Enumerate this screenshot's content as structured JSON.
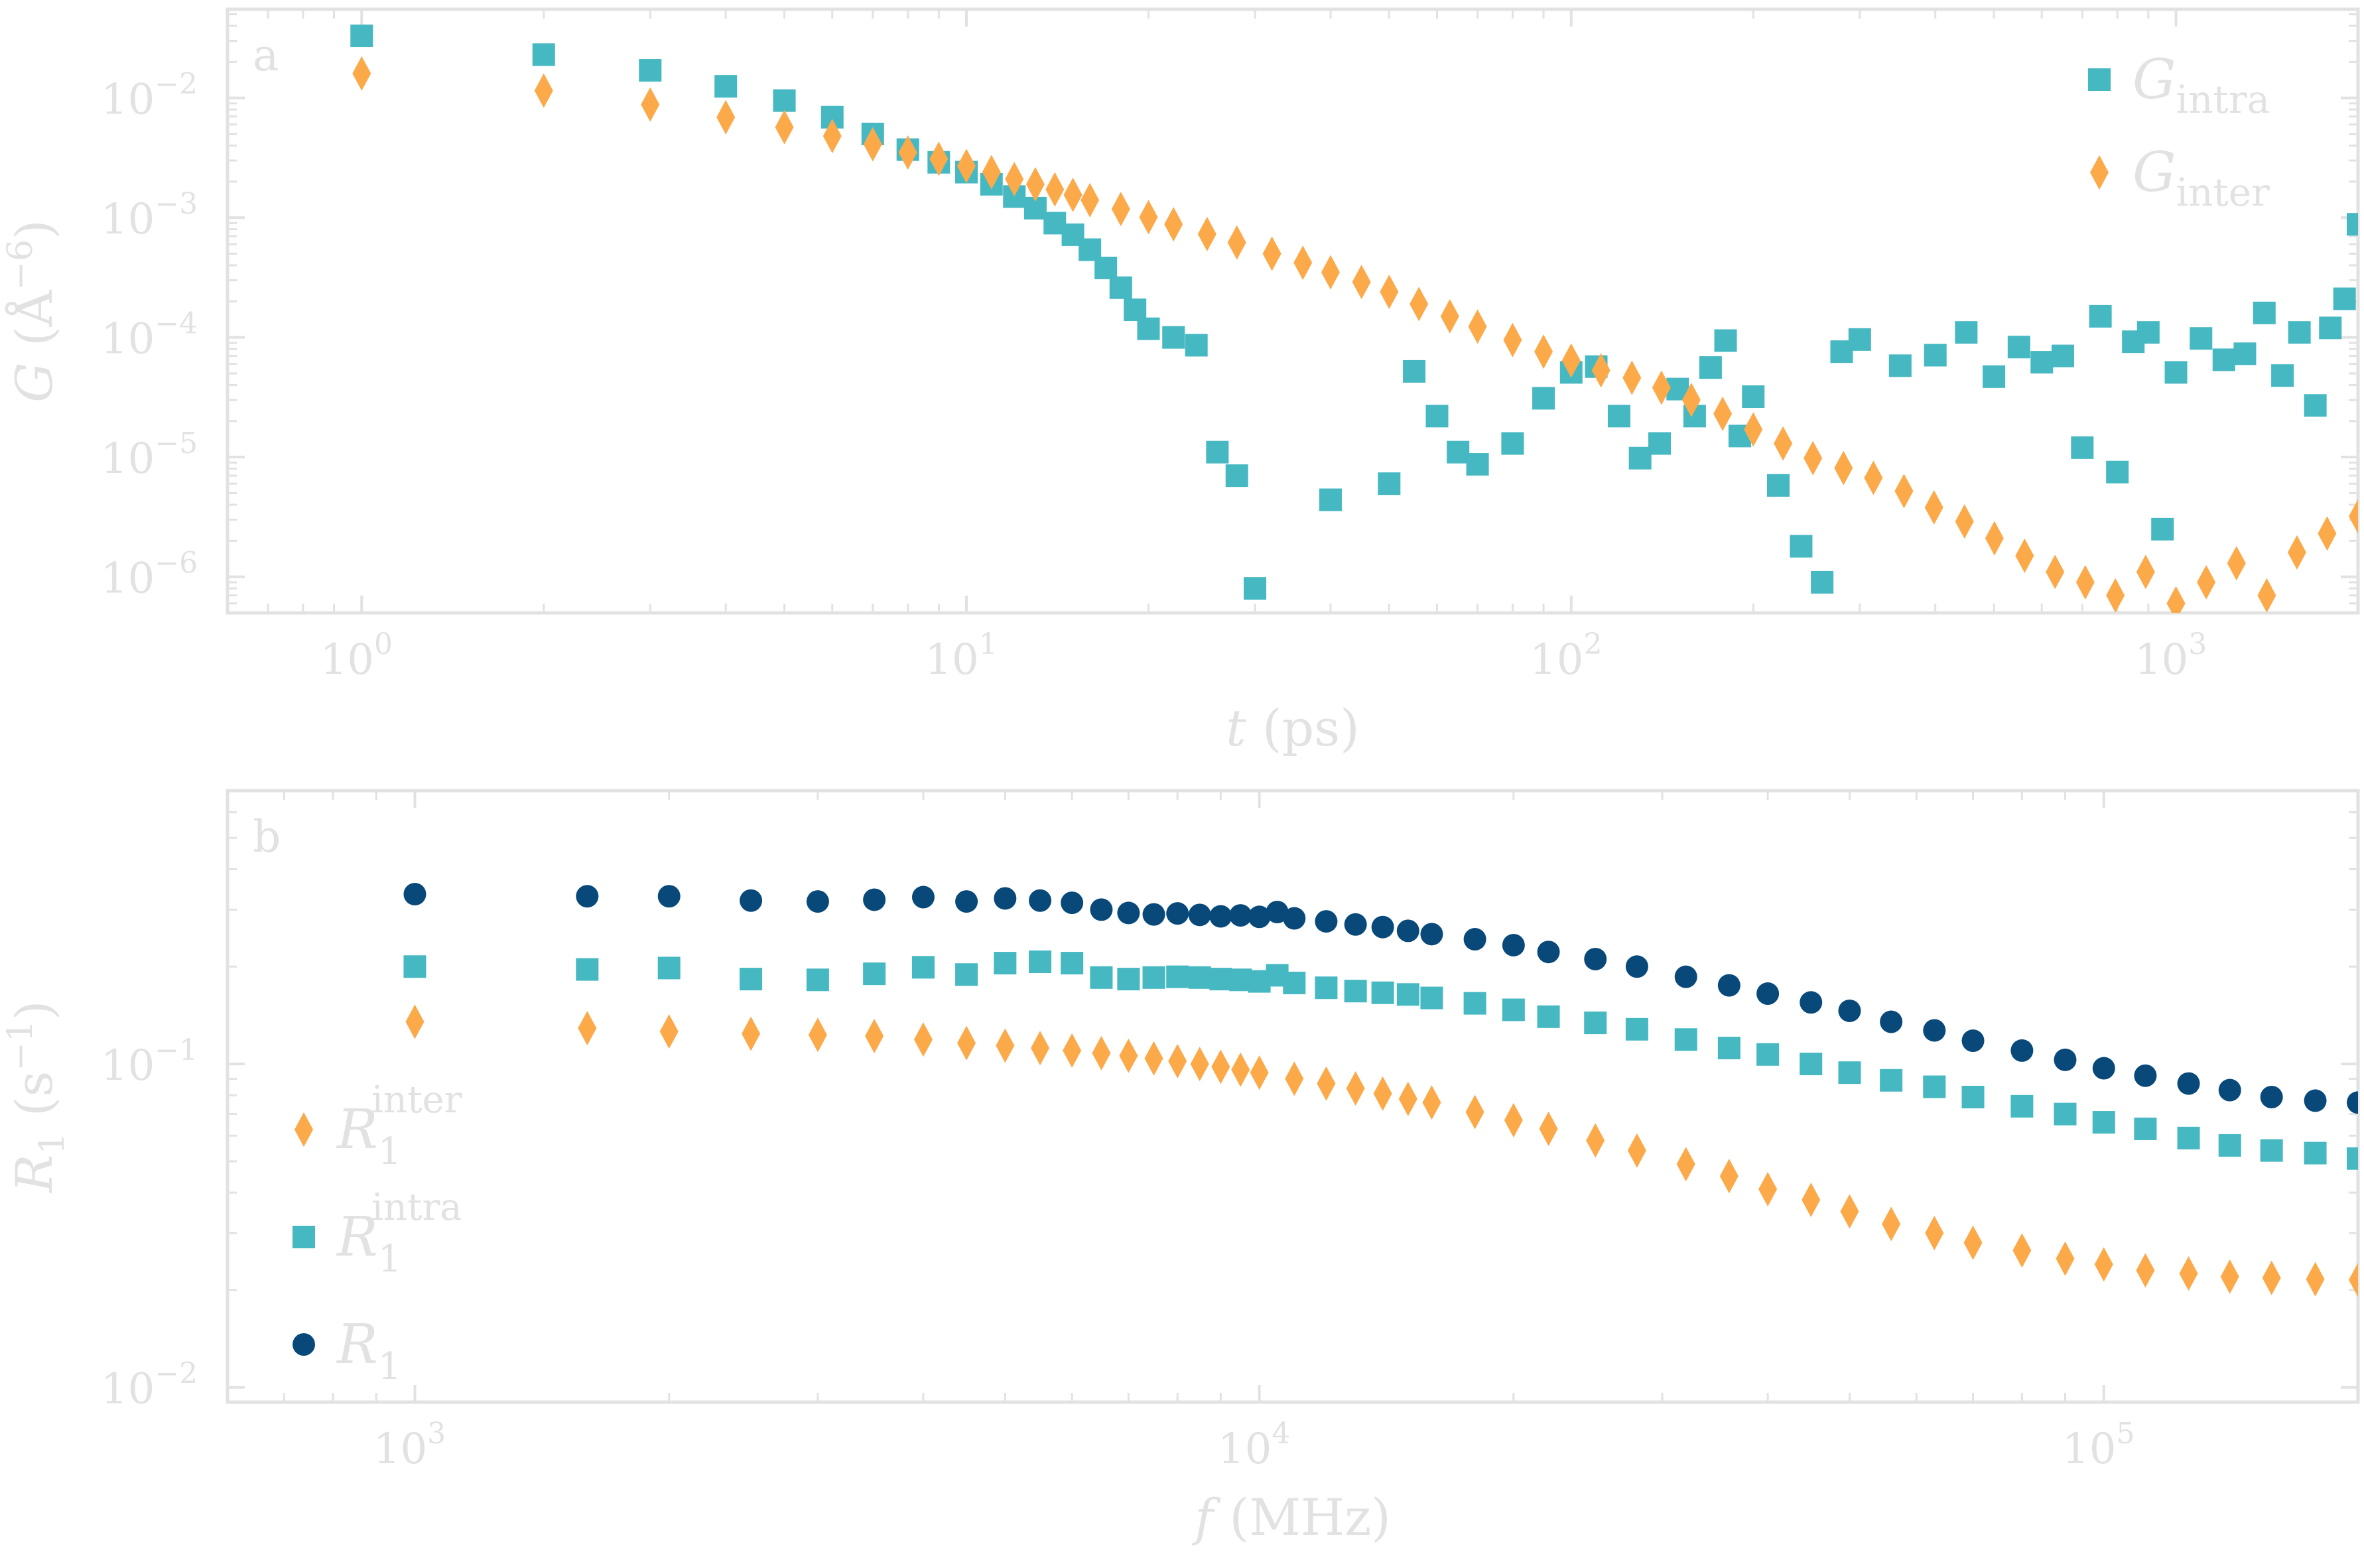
{
  "colors": {
    "intra": "#45b8c2",
    "inter": "#fca94a",
    "total": "#08497a",
    "axes": "#e2e2e2"
  },
  "chart_data": [
    {
      "panel_label": "a",
      "type": "scatter",
      "x_scale": "log",
      "y_scale": "log",
      "xlabel_symbol": "t",
      "xlabel_unit": " (ps)",
      "ylabel_symbol": "G",
      "ylabel_unit_open": " (Å",
      "ylabel_unit_exp": "−6",
      "ylabel_unit_close": ")",
      "xlim": [
        0.6,
        2000
      ],
      "ylim": [
        5e-07,
        0.055
      ],
      "x_tick_values": [
        1,
        10,
        100,
        1000
      ],
      "x_tick_exponents": [
        "0",
        "1",
        "2",
        "3"
      ],
      "y_tick_values": [
        0.01,
        0.001,
        0.0001,
        1e-05,
        1e-06
      ],
      "y_tick_exponents": [
        "−2",
        "−3",
        "−4",
        "−5",
        "−6"
      ],
      "tick_base": "10",
      "grid": false,
      "legend_position": "top-right",
      "series": [
        {
          "key": "intra",
          "name_symbol": "G",
          "name_sub": "intra",
          "marker": "square",
          "color": "#45b8c2",
          "x": [
            1,
            2,
            3,
            4,
            5,
            6,
            7,
            8,
            9,
            10,
            11,
            12,
            13,
            14,
            15,
            16,
            17,
            18,
            19,
            20,
            22,
            24,
            26,
            28,
            30,
            40,
            50,
            55,
            60,
            65,
            70,
            80,
            90,
            100,
            110,
            120,
            130,
            140,
            150,
            160,
            170,
            180,
            190,
            200,
            220,
            240,
            260,
            280,
            300,
            350,
            400,
            450,
            500,
            550,
            600,
            650,
            700,
            750,
            800,
            850,
            900,
            950,
            1000,
            1100,
            1200,
            1300,
            1400,
            1500,
            1600,
            1700,
            1800,
            1900,
            2000
          ],
          "y": [
            0.033,
            0.023,
            0.017,
            0.0125,
            0.0095,
            0.0069,
            0.005,
            0.0037,
            0.0029,
            0.0024,
            0.0019,
            0.0015,
            0.0012,
            0.0009,
            0.00072,
            0.00054,
            0.00038,
            0.00026,
            0.00017,
            0.000118,
            0.0001,
            8.6e-05,
            1.1e-05,
            7e-06,
            8e-07,
            4.4e-06,
            6e-06,
            5.2e-05,
            2.2e-05,
            1.1e-05,
            8.7e-06,
            1.3e-05,
            3.1e-05,
            5.1e-05,
            5.7e-05,
            2.2e-05,
            9.8e-06,
            1.3e-05,
            3.7e-05,
            2.2e-05,
            5.6e-05,
            9.4e-05,
            1.5e-05,
            3.2e-05,
            5.8e-06,
            1.8e-06,
            9e-07,
            7.6e-05,
            9.6e-05,
            5.8e-05,
            7.1e-05,
            0.00011,
            4.7e-05,
            8.3e-05,
            6.2e-05,
            7e-05,
            1.2e-05,
            0.00015,
            7.5e-06,
            9.2e-05,
            0.00011,
            2.5e-06,
            5.1e-05,
            9.8e-05,
            6.5e-05,
            7.3e-05,
            0.00016,
            4.8e-05,
            0.00011,
            2.7e-05,
            0.00012,
            0.00021,
            0.00088
          ]
        },
        {
          "key": "inter",
          "name_symbol": "G",
          "name_sub": "inter",
          "marker": "diamond",
          "color": "#fca94a",
          "x": [
            1,
            2,
            3,
            4,
            5,
            6,
            7,
            8,
            9,
            10,
            11,
            12,
            13,
            14,
            15,
            16,
            18,
            20,
            22,
            25,
            28,
            32,
            36,
            40,
            45,
            50,
            56,
            63,
            70,
            80,
            90,
            100,
            112,
            126,
            141,
            158,
            178,
            200,
            224,
            251,
            282,
            316,
            355,
            398,
            447,
            501,
            562,
            631,
            708,
            794,
            891,
            1000,
            1122,
            1259,
            1413,
            1585,
            1778,
            2000
          ],
          "y": [
            0.016,
            0.0115,
            0.0088,
            0.0069,
            0.0057,
            0.0048,
            0.0041,
            0.0035,
            0.0031,
            0.0027,
            0.0024,
            0.0021,
            0.0019,
            0.00172,
            0.00155,
            0.0014,
            0.00118,
            0.00101,
            0.00088,
            0.00073,
            0.00062,
            0.0005,
            0.00042,
            0.00035,
            0.00029,
            0.00024,
            0.00019,
            0.00015,
            0.000123,
            9.5e-05,
            7.6e-05,
            6.4e-05,
            5.3e-05,
            4.6e-05,
            3.8e-05,
            3e-05,
            2.3e-05,
            1.7e-05,
            1.3e-05,
            9.8e-06,
            8.1e-06,
            6.7e-06,
            5.2e-06,
            3.8e-06,
            2.9e-06,
            2.1e-06,
            1.5e-06,
            1.1e-06,
            9e-07,
            7e-07,
            1.1e-06,
            6e-07,
            9e-07,
            1.3e-06,
            7e-07,
            1.6e-06,
            2.3e-06,
            3.2e-06
          ]
        }
      ]
    },
    {
      "panel_label": "b",
      "type": "scatter",
      "x_scale": "log",
      "y_scale": "log",
      "xlabel_symbol": "f",
      "xlabel_unit": " (MHz)",
      "ylabel_symbol": "R",
      "ylabel_sub": "1",
      "ylabel_unit_open": " (s",
      "ylabel_unit_exp": "−1",
      "ylabel_unit_close": ")",
      "xlim": [
        600,
        200000
      ],
      "ylim": [
        0.009,
        0.7
      ],
      "x_tick_values": [
        1000,
        10000,
        100000
      ],
      "x_tick_exponents": [
        "3",
        "4",
        "5"
      ],
      "y_tick_values": [
        0.1,
        0.01
      ],
      "y_tick_exponents": [
        "−1",
        "−2"
      ],
      "tick_base": "10",
      "grid": false,
      "legend_position": "bottom-left",
      "series": [
        {
          "key": "inter",
          "name_symbol": "R",
          "name_sub": "1",
          "name_sup": "inter",
          "marker": "diamond",
          "color": "#fca94a",
          "x": [
            1000,
            1600,
            2000,
            2500,
            3000,
            3500,
            4000,
            4500,
            5000,
            5500,
            6000,
            6500,
            7000,
            7500,
            8000,
            8500,
            9000,
            9500,
            10000,
            11000,
            12000,
            13000,
            14000,
            15000,
            16000,
            18000,
            20000,
            22000,
            25000,
            28000,
            32000,
            36000,
            40000,
            45000,
            50000,
            56000,
            63000,
            70000,
            80000,
            90000,
            100000,
            112000,
            126000,
            141000,
            158000,
            178000,
            200000
          ],
          "y": [
            0.135,
            0.129,
            0.126,
            0.124,
            0.123,
            0.122,
            0.119,
            0.116,
            0.114,
            0.112,
            0.11,
            0.108,
            0.106,
            0.104,
            0.102,
            0.1,
            0.098,
            0.096,
            0.094,
            0.09,
            0.087,
            0.084,
            0.081,
            0.078,
            0.076,
            0.071,
            0.067,
            0.063,
            0.058,
            0.054,
            0.049,
            0.045,
            0.041,
            0.038,
            0.035,
            0.032,
            0.03,
            0.028,
            0.0265,
            0.025,
            0.024,
            0.023,
            0.0225,
            0.022,
            0.0218,
            0.0216,
            0.0215
          ]
        },
        {
          "key": "intra",
          "name_symbol": "R",
          "name_sub": "1",
          "name_sup": "intra",
          "marker": "square",
          "color": "#45b8c2",
          "x": [
            1000,
            1600,
            2000,
            2500,
            3000,
            3500,
            4000,
            4500,
            5000,
            5500,
            6000,
            6500,
            7000,
            7500,
            8000,
            8500,
            9000,
            9500,
            10000,
            10500,
            11000,
            12000,
            13000,
            14000,
            15000,
            16000,
            18000,
            20000,
            22000,
            25000,
            28000,
            32000,
            36000,
            40000,
            45000,
            50000,
            56000,
            63000,
            70000,
            80000,
            90000,
            100000,
            112000,
            126000,
            141000,
            158000,
            178000,
            200000
          ],
          "y": [
            0.2,
            0.196,
            0.198,
            0.183,
            0.182,
            0.19,
            0.199,
            0.189,
            0.205,
            0.207,
            0.205,
            0.185,
            0.183,
            0.185,
            0.186,
            0.185,
            0.183,
            0.182,
            0.18,
            0.188,
            0.178,
            0.172,
            0.168,
            0.166,
            0.164,
            0.16,
            0.154,
            0.147,
            0.14,
            0.134,
            0.128,
            0.119,
            0.112,
            0.107,
            0.1,
            0.094,
            0.089,
            0.085,
            0.079,
            0.074,
            0.07,
            0.066,
            0.063,
            0.059,
            0.056,
            0.054,
            0.053,
            0.051
          ]
        },
        {
          "key": "total",
          "name_symbol": "R",
          "name_sub": "1",
          "name_sup": "",
          "marker": "circle",
          "color": "#08497a",
          "x": [
            1000,
            1600,
            2000,
            2500,
            3000,
            3500,
            4000,
            4500,
            5000,
            5500,
            6000,
            6500,
            7000,
            7500,
            8000,
            8500,
            9000,
            9500,
            10000,
            10500,
            11000,
            12000,
            13000,
            14000,
            15000,
            16000,
            18000,
            20000,
            22000,
            25000,
            28000,
            32000,
            36000,
            40000,
            45000,
            50000,
            56000,
            63000,
            70000,
            80000,
            90000,
            100000,
            112000,
            126000,
            141000,
            158000,
            178000,
            200000
          ],
          "y": [
            0.335,
            0.33,
            0.33,
            0.32,
            0.318,
            0.322,
            0.328,
            0.318,
            0.325,
            0.32,
            0.315,
            0.3,
            0.293,
            0.29,
            0.292,
            0.289,
            0.286,
            0.288,
            0.285,
            0.295,
            0.282,
            0.276,
            0.27,
            0.265,
            0.258,
            0.252,
            0.243,
            0.233,
            0.222,
            0.211,
            0.2,
            0.186,
            0.175,
            0.165,
            0.155,
            0.146,
            0.135,
            0.127,
            0.118,
            0.11,
            0.103,
            0.097,
            0.092,
            0.087,
            0.083,
            0.079,
            0.077,
            0.076
          ]
        }
      ]
    }
  ]
}
